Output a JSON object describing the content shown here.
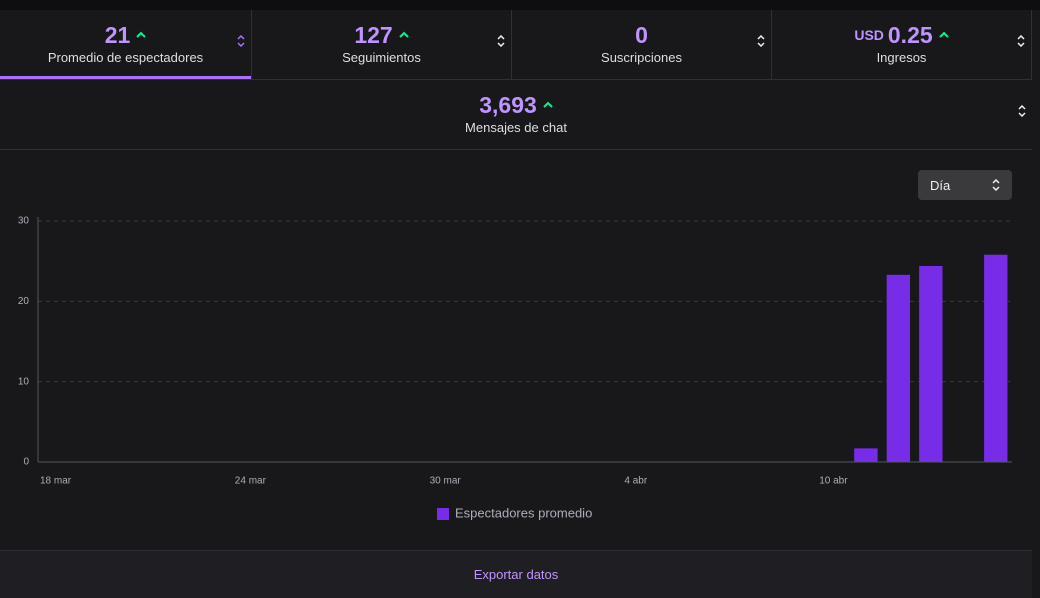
{
  "stats": [
    {
      "value": 21,
      "label": "Promedio de espectadores"
    },
    {
      "value": 127,
      "label": "Seguimientos"
    },
    {
      "value": 0,
      "label": "Suscripciones"
    },
    {
      "prefix": "USD",
      "value": 0.25,
      "label": "Ingresos"
    }
  ],
  "chat": {
    "value": "3,693",
    "label": "Mensajes de chat"
  },
  "dropdown": "Día",
  "chart_data": {
    "type": "bar",
    "categories": [
      "18 mar",
      null,
      null,
      null,
      null,
      null,
      "24 mar",
      null,
      null,
      null,
      null,
      null,
      "30 mar",
      null,
      null,
      null,
      null,
      null,
      "4 abr",
      null,
      null,
      null,
      null,
      null,
      "10 abr",
      null,
      null,
      null,
      null,
      null
    ],
    "series": [
      {
        "name": "Espectadores promedio",
        "color": "#772ce8",
        "values": [
          null,
          null,
          null,
          null,
          null,
          null,
          null,
          null,
          null,
          null,
          null,
          null,
          null,
          null,
          null,
          null,
          null,
          null,
          null,
          null,
          null,
          null,
          null,
          null,
          null,
          1.7,
          23.3,
          24.4,
          null,
          25.8
        ]
      }
    ],
    "ylim": [
      0,
      30
    ],
    "yticks": [
      0,
      10,
      20,
      30
    ],
    "grid": true
  },
  "footer": "Exportar datos"
}
